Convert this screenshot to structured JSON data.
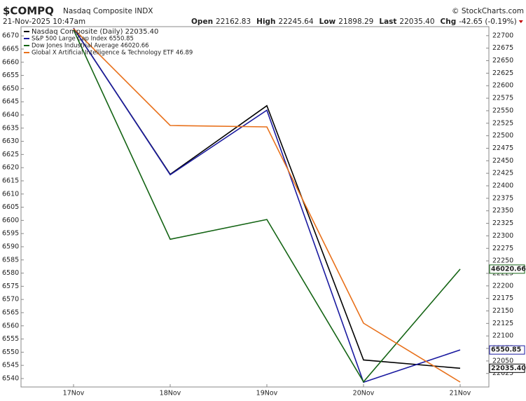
{
  "chart_data": {
    "type": "line",
    "symbol": "$COMPQ",
    "title": "Nasdaq Composite INDX",
    "date": "21-Nov-2025 10:47am",
    "credit": "© StockCharts.com",
    "stats": [
      {
        "label": "Open",
        "value": "22162.83"
      },
      {
        "label": "High",
        "value": "22245.64"
      },
      {
        "label": "Low",
        "value": "21898.29"
      },
      {
        "label": "Last",
        "value": "22035.40"
      },
      {
        "label": "Chg",
        "value": "-42.65 (-0.19%)"
      }
    ],
    "categories": [
      "17Nov",
      "18Nov",
      "19Nov",
      "20Nov",
      "21Nov"
    ],
    "ylim": [
      6536.8,
      6673.5
    ],
    "yticks": [
      6540,
      6545,
      6550,
      6555,
      6560,
      6565,
      6570,
      6575,
      6580,
      6585,
      6590,
      6595,
      6600,
      6605,
      6610,
      6615,
      6620,
      6625,
      6630,
      6635,
      6640,
      6645,
      6650,
      6655,
      6660,
      6665,
      6670
    ],
    "y2lim": [
      21998,
      22718
    ],
    "y2ticks": [
      22025,
      22050,
      22075,
      22100,
      22125,
      22150,
      22175,
      22200,
      22225,
      22250,
      22275,
      22300,
      22325,
      22350,
      22375,
      22400,
      22425,
      22450,
      22475,
      22500,
      22525,
      22550,
      22575,
      22600,
      22625,
      22650,
      22675,
      22700
    ],
    "grid": false,
    "legend": "top-left",
    "series": [
      {
        "name": "Nasdaq Composite (Daily) 22035.40",
        "color": "#000000",
        "axis": "y2",
        "values": [
          22715,
          22423,
          22560,
          22052,
          22035.4
        ],
        "value_labels": [
          null,
          null,
          null,
          null,
          "22035.40"
        ]
      },
      {
        "name": "S&P 500 Large Cap Index 6550.85",
        "color": "#1a1aa0",
        "axis": "y",
        "values": [
          6673,
          6617.3,
          6641.8,
          6538.6,
          6550.85
        ]
      },
      {
        "name": "Dow Jones Industrial Average 46020.66",
        "color": "#146414",
        "ylim": [
          45740,
          46598
        ],
        "values": [
          46590.24,
          46091.74,
          46138.77,
          45752.26,
          46020.66
        ]
      },
      {
        "name": "Global X Artificial Intelligence & Technology ETF 46.89",
        "color": "#e8701a",
        "ylim": [
          46.855,
          49.425
        ],
        "values": [
          49.41,
          48.72,
          48.71,
          47.31,
          46.89
        ]
      }
    ]
  }
}
